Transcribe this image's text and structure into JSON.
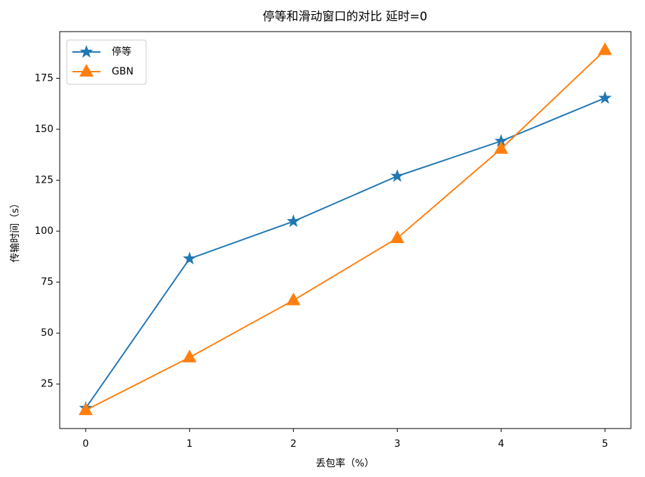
{
  "chart_data": {
    "type": "line",
    "title": "停等和滑动窗口的对比  延时=0",
    "x_label": "丢包率（%）",
    "y_label": "传输时间（s）",
    "x": [
      0,
      1,
      2,
      3,
      4,
      5
    ],
    "series": [
      {
        "name": "停等",
        "color": "#1f77b4",
        "marker": "star",
        "values": [
          13.2,
          86.5,
          104.8,
          127.0,
          144.2,
          165.3
        ]
      },
      {
        "name": "GBN",
        "color": "#ff7f0e",
        "marker": "triangle",
        "values": [
          12.2,
          38.1,
          66.1,
          96.6,
          140.4,
          188.8
        ]
      }
    ],
    "xlim": [
      -0.25,
      5.25
    ],
    "xticks": [
      0,
      1,
      2,
      3,
      4,
      5
    ],
    "ylim": [
      3.2,
      197.9
    ],
    "yticks": [
      25,
      50,
      75,
      100,
      125,
      150,
      175
    ],
    "legend": "upper left",
    "grid": false
  }
}
